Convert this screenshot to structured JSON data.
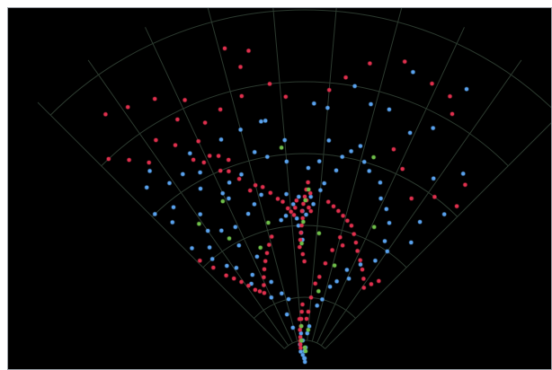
{
  "chart_data": {
    "type": "scatter",
    "projection": "polar-wedge",
    "title": "",
    "theta_range_deg": [
      45,
      135
    ],
    "r_range": [
      0,
      1
    ],
    "grid": true,
    "grid_color": "#2c3a2f",
    "background": "#000000",
    "point_colors": {
      "blue": "#5aa2ee",
      "red": "#e0304e",
      "green": "#6fbf4a"
    },
    "series": [
      {
        "color": "blue",
        "points": [
          [
            60.0,
            0.9
          ],
          [
            70.0,
            0.88
          ],
          [
            80.0,
            0.8
          ],
          [
            76.0,
            0.76
          ],
          [
            85.0,
            0.73
          ],
          [
            88.0,
            0.74
          ],
          [
            100.0,
            0.7
          ],
          [
            105.0,
            0.69
          ],
          [
            110.0,
            0.68
          ],
          [
            118.0,
            0.68
          ],
          [
            126.0,
            0.64
          ],
          [
            128.0,
            0.7
          ],
          [
            131.0,
            0.67
          ],
          [
            95.0,
            0.58
          ],
          [
            100.0,
            0.6
          ],
          [
            103.0,
            0.62
          ],
          [
            108.0,
            0.57
          ],
          [
            112.0,
            0.56
          ],
          [
            115.0,
            0.54
          ],
          [
            120.0,
            0.58
          ],
          [
            124.0,
            0.52
          ],
          [
            121.0,
            0.45
          ],
          [
            114.0,
            0.52
          ],
          [
            110.0,
            0.46
          ],
          [
            107.0,
            0.48
          ],
          [
            104.0,
            0.5
          ],
          [
            96.0,
            0.49
          ],
          [
            97.0,
            0.43
          ],
          [
            99.0,
            0.42
          ],
          [
            92.0,
            0.48
          ],
          [
            94.0,
            0.46
          ],
          [
            91.5,
            0.38
          ],
          [
            91.0,
            0.36
          ],
          [
            93.0,
            0.42
          ],
          [
            90.8,
            0.44
          ],
          [
            92.5,
            0.4
          ],
          [
            89.5,
            0.43
          ],
          [
            88.0,
            0.48
          ],
          [
            87.0,
            0.46
          ],
          [
            85.0,
            0.5
          ],
          [
            84.0,
            0.52
          ],
          [
            81.0,
            0.56
          ],
          [
            80.0,
            0.6
          ],
          [
            78.0,
            0.62
          ],
          [
            76.0,
            0.64
          ],
          [
            74.0,
            0.6
          ],
          [
            72.0,
            0.58
          ],
          [
            68.0,
            0.56
          ],
          [
            66.0,
            0.52
          ],
          [
            63.0,
            0.5
          ],
          [
            60.0,
            0.47
          ],
          [
            58.0,
            0.42
          ],
          [
            55.0,
            0.4
          ],
          [
            57.0,
            0.36
          ],
          [
            62.0,
            0.33
          ],
          [
            67.0,
            0.3
          ],
          [
            64.0,
            0.28
          ],
          [
            70.0,
            0.26
          ],
          [
            73.0,
            0.24
          ],
          [
            76.0,
            0.2
          ],
          [
            79.0,
            0.18
          ],
          [
            84.0,
            0.12
          ],
          [
            86.0,
            0.1
          ],
          [
            87.5,
            0.06
          ],
          [
            88.5,
            0.02
          ],
          [
            90.5,
            0.03
          ],
          [
            91.0,
            0.05
          ],
          [
            93.0,
            0.03
          ],
          [
            94.0,
            0.08
          ],
          [
            96.0,
            0.1
          ],
          [
            98.0,
            0.04
          ],
          [
            101.0,
            0.07
          ],
          [
            103.0,
            0.05
          ],
          [
            106.0,
            0.12
          ],
          [
            108.0,
            0.16
          ],
          [
            103.0,
            0.2
          ],
          [
            107.0,
            0.22
          ],
          [
            111.0,
            0.26
          ],
          [
            115.0,
            0.22
          ],
          [
            119.0,
            0.3
          ],
          [
            122.0,
            0.28
          ],
          [
            124.0,
            0.34
          ],
          [
            127.0,
            0.36
          ],
          [
            130.0,
            0.4
          ],
          [
            133.0,
            0.46
          ],
          [
            128.0,
            0.43
          ],
          [
            118.0,
            0.39
          ],
          [
            113.0,
            0.34
          ],
          [
            52.0,
            0.52
          ],
          [
            50.0,
            0.46
          ],
          [
            48.0,
            0.58
          ],
          [
            51.0,
            0.7
          ],
          [
            56.0,
            0.64
          ],
          [
            62.0,
            0.76
          ],
          [
            66.0,
            0.72
          ],
          [
            72.0,
            0.76
          ],
          [
            84.0,
            0.64
          ],
          [
            86.0,
            0.58
          ],
          [
            89.0,
            0.56
          ],
          [
            95.0,
            0.64
          ],
          [
            99.0,
            0.7
          ],
          [
            116.0,
            0.44
          ],
          [
            125.0,
            0.47
          ],
          [
            118.0,
            0.62
          ],
          [
            122.0,
            0.64
          ],
          [
            129.0,
            0.58
          ],
          [
            132.0,
            0.55
          ],
          [
            134.0,
            0.6
          ]
        ]
      },
      {
        "color": "red",
        "points": [
          [
            89.0,
            0.52
          ],
          [
            89.5,
            0.5
          ],
          [
            90.0,
            0.48
          ],
          [
            90.5,
            0.46
          ],
          [
            91.0,
            0.44
          ],
          [
            90.8,
            0.42
          ],
          [
            91.2,
            0.4
          ],
          [
            91.6,
            0.38
          ],
          [
            92.0,
            0.36
          ],
          [
            92.4,
            0.34
          ],
          [
            91.0,
            0.32
          ],
          [
            90.2,
            0.3
          ],
          [
            89.4,
            0.47
          ],
          [
            88.6,
            0.45
          ],
          [
            87.8,
            0.44
          ],
          [
            88.2,
            0.49
          ],
          [
            92.8,
            0.47
          ],
          [
            93.4,
            0.45
          ],
          [
            94.0,
            0.43
          ],
          [
            95.0,
            0.44
          ],
          [
            96.0,
            0.45
          ],
          [
            97.5,
            0.47
          ],
          [
            99.0,
            0.48
          ],
          [
            101.0,
            0.5
          ],
          [
            103.0,
            0.52
          ],
          [
            105.0,
            0.53
          ],
          [
            107.0,
            0.52
          ],
          [
            109.0,
            0.56
          ],
          [
            111.0,
            0.59
          ],
          [
            113.0,
            0.6
          ],
          [
            110.0,
            0.62
          ],
          [
            112.0,
            0.64
          ],
          [
            114.0,
            0.65
          ],
          [
            116.0,
            0.64
          ],
          [
            118.0,
            0.66
          ],
          [
            115.0,
            0.7
          ],
          [
            120.0,
            0.72
          ],
          [
            123.0,
            0.76
          ],
          [
            60.0,
            0.82
          ],
          [
            62.0,
            0.86
          ],
          [
            66.0,
            0.87
          ],
          [
            72.0,
            0.9
          ],
          [
            78.0,
            0.87
          ],
          [
            82.0,
            0.82
          ],
          [
            85.0,
            0.78
          ],
          [
            94.0,
            0.76
          ],
          [
            97.0,
            0.8
          ],
          [
            103.0,
            0.78
          ],
          [
            108.0,
            0.76
          ],
          [
            112.0,
            0.74
          ],
          [
            117.0,
            0.78
          ],
          [
            127.0,
            0.72
          ],
          [
            130.0,
            0.76
          ],
          [
            133.0,
            0.8
          ],
          [
            82.0,
            0.47
          ],
          [
            80.0,
            0.46
          ],
          [
            78.0,
            0.45
          ],
          [
            76.0,
            0.44
          ],
          [
            74.0,
            0.43
          ],
          [
            72.0,
            0.42
          ],
          [
            70.0,
            0.4
          ],
          [
            68.0,
            0.38
          ],
          [
            66.0,
            0.36
          ],
          [
            63.0,
            0.34
          ],
          [
            60.0,
            0.32
          ],
          [
            57.0,
            0.3
          ],
          [
            54.0,
            0.28
          ],
          [
            52.0,
            0.3
          ],
          [
            50.0,
            0.32
          ],
          [
            92.0,
            0.18
          ],
          [
            93.0,
            0.16
          ],
          [
            94.0,
            0.14
          ],
          [
            95.0,
            0.12
          ],
          [
            96.0,
            0.14
          ],
          [
            97.0,
            0.11
          ],
          [
            98.0,
            0.09
          ],
          [
            99.0,
            0.08
          ],
          [
            100.0,
            0.07
          ],
          [
            101.0,
            0.06
          ],
          [
            88.0,
            0.14
          ],
          [
            86.5,
            0.16
          ],
          [
            85.0,
            0.2
          ],
          [
            83.0,
            0.24
          ],
          [
            81.0,
            0.26
          ],
          [
            79.0,
            0.3
          ],
          [
            77.0,
            0.34
          ],
          [
            75.0,
            0.38
          ],
          [
            73.0,
            0.36
          ],
          [
            104.0,
            0.38
          ],
          [
            106.0,
            0.36
          ],
          [
            108.0,
            0.34
          ],
          [
            110.0,
            0.32
          ],
          [
            112.0,
            0.3
          ],
          [
            114.0,
            0.28
          ],
          [
            116.0,
            0.26
          ],
          [
            118.0,
            0.24
          ],
          [
            120.0,
            0.25
          ],
          [
            122.0,
            0.26
          ],
          [
            124.0,
            0.28
          ],
          [
            126.0,
            0.3
          ],
          [
            128.0,
            0.32
          ],
          [
            130.0,
            0.34
          ],
          [
            132.0,
            0.38
          ],
          [
            134.0,
            0.42
          ],
          [
            47.0,
            0.62
          ],
          [
            49.0,
            0.68
          ],
          [
            53.0,
            0.6
          ],
          [
            58.0,
            0.56
          ],
          [
            64.0,
            0.62
          ],
          [
            68.0,
            0.66
          ],
          [
            100.0,
            0.9
          ],
          [
            102.0,
            0.86
          ],
          [
            104.0,
            0.92
          ],
          [
            114.0,
            0.82
          ],
          [
            119.0,
            0.86
          ],
          [
            124.0,
            0.88
          ],
          [
            128.0,
            0.9
          ]
        ]
      },
      {
        "color": "green",
        "points": [
          [
            89.8,
            0.47
          ],
          [
            90.6,
            0.41
          ],
          [
            91.4,
            0.35
          ],
          [
            88.8,
            0.5
          ],
          [
            94.5,
            0.12
          ],
          [
            96.5,
            0.08
          ],
          [
            90.0,
            0.06
          ],
          [
            87.0,
            0.05
          ],
          [
            85.0,
            0.11
          ],
          [
            80.0,
            0.22
          ],
          [
            74.0,
            0.3
          ],
          [
            110.0,
            0.36
          ],
          [
            104.0,
            0.42
          ],
          [
            116.0,
            0.52
          ],
          [
            120.0,
            0.42
          ],
          [
            126.0,
            0.5
          ],
          [
            72.0,
            0.62
          ],
          [
            96.0,
            0.62
          ],
          [
            64.0,
            0.44
          ],
          [
            84.0,
            0.38
          ]
        ]
      }
    ]
  }
}
